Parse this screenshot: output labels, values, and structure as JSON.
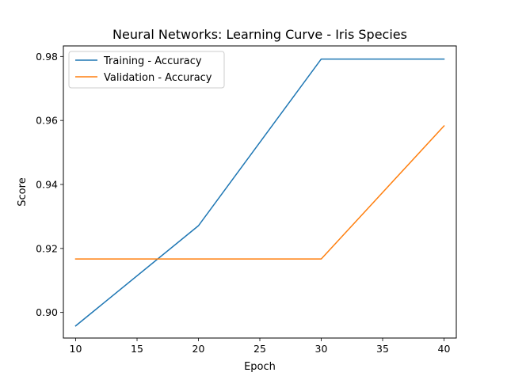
{
  "chart_data": {
    "type": "line",
    "title": "Neural Networks: Learning Curve - Iris Species",
    "xlabel": "Epoch",
    "ylabel": "Score",
    "x": [
      10,
      20,
      30,
      40
    ],
    "xlim": [
      9,
      41
    ],
    "ylim": [
      0.892,
      0.9833
    ],
    "xticks": [
      10,
      15,
      20,
      25,
      30,
      35,
      40
    ],
    "yticks": [
      0.9,
      0.92,
      0.94,
      0.96,
      0.98
    ],
    "ytick_labels": [
      "0.90",
      "0.92",
      "0.94",
      "0.96",
      "0.98"
    ],
    "grid": false,
    "legend_position": "top-left",
    "series": [
      {
        "name": "Training - Accuracy",
        "color": "#1f77b4",
        "values": [
          0.8958,
          0.9271,
          0.9792,
          0.9792
        ]
      },
      {
        "name": "Validation - Accuracy",
        "color": "#ff7f0e",
        "values": [
          0.9167,
          0.9167,
          0.9167,
          0.9583
        ]
      }
    ]
  }
}
